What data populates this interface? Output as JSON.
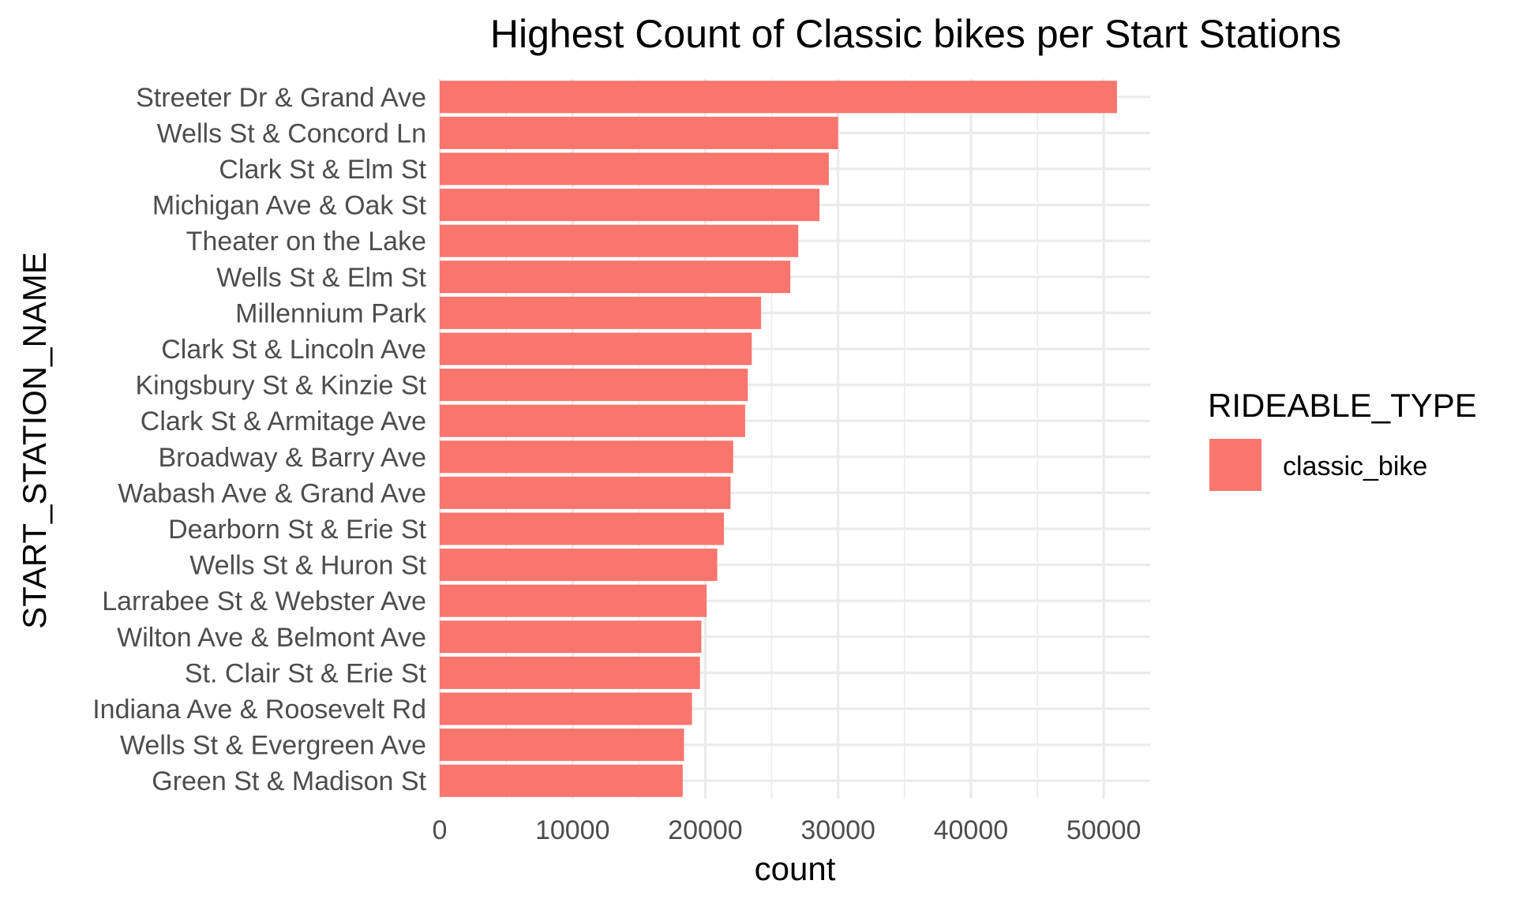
{
  "chart_data": {
    "type": "bar",
    "orientation": "horizontal",
    "title": "Highest Count of Classic bikes per Start Stations",
    "xlabel": "count",
    "ylabel": "START_STATION_NAME",
    "categories": [
      "Streeter Dr & Grand Ave",
      "Wells St & Concord Ln",
      "Clark St & Elm St",
      "Michigan Ave & Oak St",
      "Theater on the Lake",
      "Wells St & Elm St",
      "Millennium Park",
      "Clark St & Lincoln Ave",
      "Kingsbury St & Kinzie St",
      "Clark St & Armitage Ave",
      "Broadway & Barry Ave",
      "Wabash Ave & Grand Ave",
      "Dearborn St & Erie St",
      "Wells St & Huron St",
      "Larrabee St & Webster Ave",
      "Wilton Ave & Belmont Ave",
      "St. Clair St & Erie St",
      "Indiana Ave & Roosevelt Rd",
      "Wells St & Evergreen Ave",
      "Green St & Madison St"
    ],
    "series": [
      {
        "name": "classic_bike",
        "color": "#F8766D",
        "values": [
          51000,
          30000,
          29300,
          28600,
          27000,
          26400,
          24200,
          23500,
          23200,
          23000,
          22100,
          21900,
          21400,
          20900,
          20100,
          19700,
          19600,
          19000,
          18400,
          18300
        ]
      }
    ],
    "xlim": [
      0,
      53500
    ],
    "xticks": [
      0,
      10000,
      20000,
      30000,
      40000,
      50000
    ],
    "xtick_labels": [
      "0",
      "10000",
      "20000",
      "30000",
      "40000",
      "50000"
    ],
    "legend": {
      "title": "RIDEABLE_TYPE",
      "position": "right"
    },
    "grid": true,
    "background": "#FFFFFF"
  }
}
